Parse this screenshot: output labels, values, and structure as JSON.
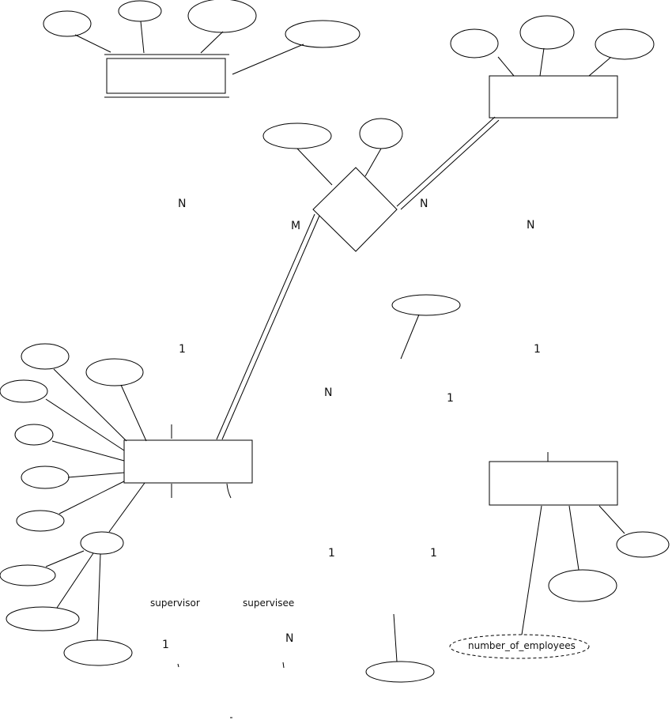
{
  "diagram": {
    "cardinalities": {
      "c1": "N",
      "c2": "M",
      "c3": "N",
      "c4": "N",
      "c5": "1",
      "c6": "1",
      "c7": "N",
      "c8": "1",
      "c9": "1",
      "c10": "1",
      "c11": "1",
      "c12": "N"
    },
    "roles": {
      "supervisor": "supervisor",
      "supervisee": "supervisee"
    },
    "attributes": {
      "department_number_of_employees": "number_of_employees"
    },
    "colors": {
      "stroke": "#000000",
      "background": "#ffffff"
    }
  }
}
